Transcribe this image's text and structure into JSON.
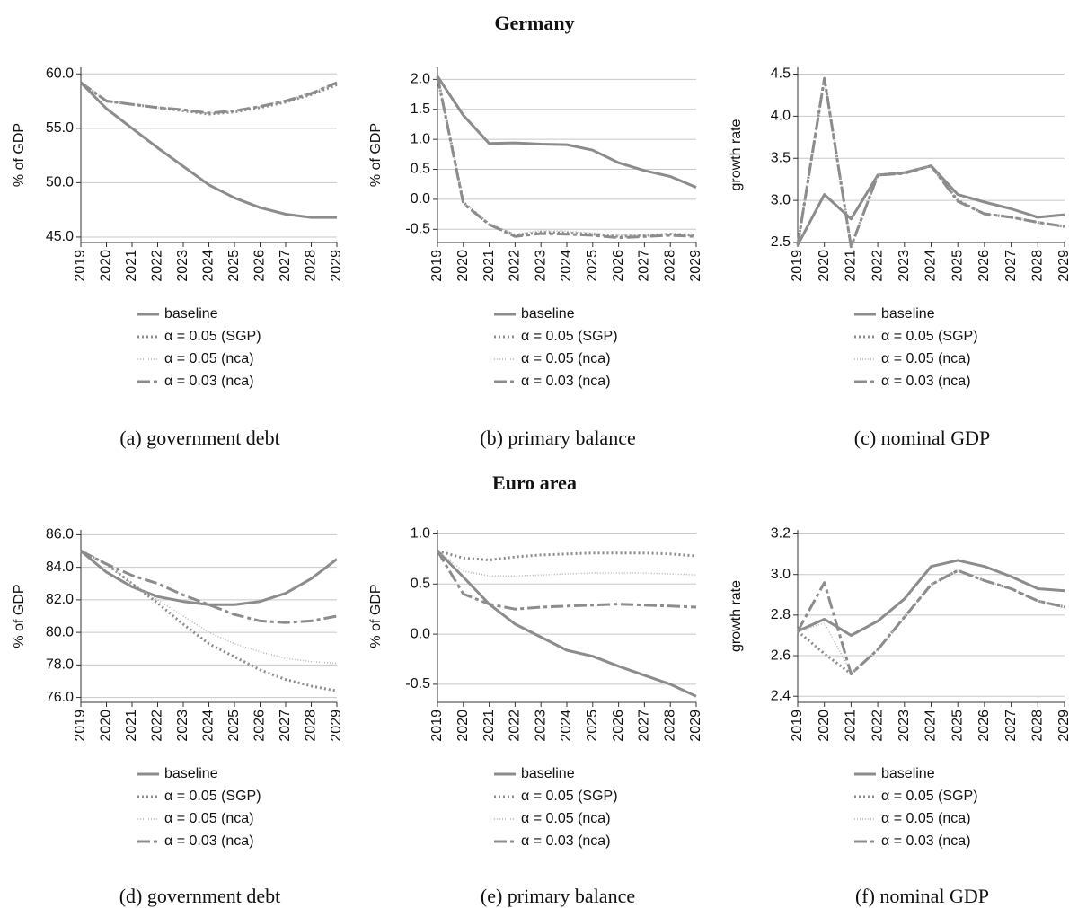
{
  "headings": [
    "Germany",
    "Euro area"
  ],
  "chart_data": [
    {
      "type": "line",
      "caption": "(a) government debt",
      "ylabel": "% of GDP",
      "categories": [
        "2019",
        "2020",
        "2021",
        "2022",
        "2023",
        "2024",
        "2025",
        "2026",
        "2027",
        "2028",
        "2029"
      ],
      "ylim": [
        44.5,
        60.6
      ],
      "yticks": [
        {
          "value": 45,
          "label": "45.0"
        },
        {
          "value": 50,
          "label": "50.0"
        },
        {
          "value": 55,
          "label": "55.0"
        },
        {
          "value": 60,
          "label": "60.0"
        }
      ],
      "grid": true,
      "series": [
        {
          "name": "baseline",
          "color": "#8c8c8c",
          "style": "solid",
          "values": [
            59.2,
            56.8,
            55.0,
            53.2,
            51.5,
            49.8,
            48.6,
            47.7,
            47.1,
            46.8,
            46.8
          ]
        },
        {
          "name": "α = 0.05 (SGP)",
          "color": "#8c8c8c",
          "style": "dotted",
          "values": [
            59.2,
            57.5,
            57.2,
            56.9,
            56.6,
            56.3,
            56.5,
            56.9,
            57.4,
            58.1,
            59.0
          ]
        },
        {
          "name": "α = 0.05 (nca)",
          "color": "#b4b4b4",
          "style": "fine",
          "values": [
            59.2,
            57.5,
            57.2,
            56.9,
            56.6,
            56.4,
            56.6,
            57.0,
            57.6,
            58.3,
            59.2
          ]
        },
        {
          "name": "α = 0.03 (nca)",
          "color": "#8c8c8c",
          "style": "dashed",
          "values": [
            59.2,
            57.5,
            57.2,
            56.9,
            56.7,
            56.4,
            56.6,
            57.0,
            57.5,
            58.2,
            59.2
          ]
        }
      ]
    },
    {
      "type": "line",
      "caption": "(b) primary balance",
      "ylabel": "% of GDP",
      "categories": [
        "2019",
        "2020",
        "2021",
        "2022",
        "2023",
        "2024",
        "2025",
        "2026",
        "2027",
        "2028",
        "2029"
      ],
      "ylim": [
        -0.72,
        2.2
      ],
      "yticks": [
        -0.5,
        {
          "value": 0,
          "label": "0.0"
        },
        0.5,
        {
          "value": 1,
          "label": "1.0"
        },
        1.5,
        {
          "value": 2,
          "label": "2.0"
        }
      ],
      "grid": true,
      "series": [
        {
          "name": "baseline",
          "color": "#8c8c8c",
          "style": "solid",
          "values": [
            2.05,
            1.4,
            0.93,
            0.94,
            0.92,
            0.91,
            0.82,
            0.61,
            0.48,
            0.38,
            0.2
          ]
        },
        {
          "name": "α = 0.05 (SGP)",
          "color": "#8c8c8c",
          "style": "dotted",
          "values": [
            2.05,
            -0.05,
            -0.42,
            -0.6,
            -0.55,
            -0.56,
            -0.58,
            -0.62,
            -0.6,
            -0.58,
            -0.6
          ]
        },
        {
          "name": "α = 0.05 (nca)",
          "color": "#b4b4b4",
          "style": "fine",
          "values": [
            2.05,
            -0.05,
            -0.4,
            -0.58,
            -0.52,
            -0.53,
            -0.56,
            -0.6,
            -0.59,
            -0.57,
            -0.58
          ]
        },
        {
          "name": "α = 0.03 (nca)",
          "color": "#8c8c8c",
          "style": "dashed",
          "values": [
            2.05,
            -0.07,
            -0.42,
            -0.62,
            -0.57,
            -0.58,
            -0.6,
            -0.64,
            -0.62,
            -0.6,
            -0.62
          ]
        }
      ]
    },
    {
      "type": "line",
      "caption": "(c) nominal GDP",
      "ylabel": "growth rate",
      "categories": [
        "2019",
        "2020",
        "2021",
        "2022",
        "2023",
        "2024",
        "2025",
        "2026",
        "2027",
        "2028",
        "2029"
      ],
      "ylim": [
        2.5,
        4.58
      ],
      "yticks": [
        2.5,
        {
          "value": 3,
          "label": "3.0"
        },
        3.5,
        {
          "value": 4,
          "label": "4.0"
        },
        4.5
      ],
      "grid": true,
      "series": [
        {
          "name": "baseline",
          "color": "#8c8c8c",
          "style": "solid",
          "values": [
            2.47,
            3.07,
            2.78,
            3.3,
            3.33,
            3.41,
            3.07,
            2.98,
            2.9,
            2.8,
            2.83
          ]
        },
        {
          "name": "α = 0.05 (SGP)",
          "color": "#8c8c8c",
          "style": "dotted",
          "values": [
            2.47,
            4.45,
            2.45,
            3.3,
            3.33,
            3.41,
            3.0,
            2.84,
            2.8,
            2.74,
            2.69
          ]
        },
        {
          "name": "α = 0.05 (nca)",
          "color": "#b4b4b4",
          "style": "fine",
          "values": [
            2.47,
            4.45,
            2.45,
            3.3,
            3.33,
            3.41,
            3.0,
            2.84,
            2.8,
            2.74,
            2.69
          ]
        },
        {
          "name": "α = 0.03 (nca)",
          "color": "#8c8c8c",
          "style": "dashed",
          "values": [
            2.47,
            4.45,
            2.45,
            3.3,
            3.32,
            3.41,
            2.99,
            2.84,
            2.8,
            2.74,
            2.69
          ]
        }
      ]
    },
    {
      "type": "line",
      "caption": "(d) government debt",
      "ylabel": "% of GDP",
      "categories": [
        "2019",
        "2020",
        "2021",
        "2022",
        "2023",
        "2024",
        "2025",
        "2026",
        "2027",
        "2028",
        "2029"
      ],
      "ylim": [
        75.7,
        86.3
      ],
      "yticks": [
        {
          "value": 76,
          "label": "76.0"
        },
        {
          "value": 78,
          "label": "78.0"
        },
        {
          "value": 80,
          "label": "80.0"
        },
        {
          "value": 82,
          "label": "82.0"
        },
        {
          "value": 84,
          "label": "84.0"
        },
        {
          "value": 86,
          "label": "86.0"
        }
      ],
      "grid": true,
      "series": [
        {
          "name": "baseline",
          "color": "#8c8c8c",
          "style": "solid",
          "values": [
            85,
            83.7,
            82.8,
            82.2,
            81.9,
            81.7,
            81.7,
            81.9,
            82.4,
            83.3,
            84.5
          ]
        },
        {
          "name": "α = 0.05 (SGP)",
          "color": "#8c8c8c",
          "style": "dotted",
          "values": [
            85,
            84.2,
            83.0,
            81.8,
            80.5,
            79.3,
            78.5,
            77.7,
            77.1,
            76.7,
            76.4
          ]
        },
        {
          "name": "α = 0.05 (nca)",
          "color": "#b4b4b4",
          "style": "fine",
          "values": [
            85,
            84.2,
            83.0,
            82.0,
            81.0,
            80.0,
            79.3,
            78.8,
            78.4,
            78.2,
            78.1
          ]
        },
        {
          "name": "α = 0.03 (nca)",
          "color": "#8c8c8c",
          "style": "dashed",
          "values": [
            85,
            84.2,
            83.5,
            83.0,
            82.3,
            81.7,
            81.1,
            80.7,
            80.6,
            80.7,
            81.0
          ]
        }
      ]
    },
    {
      "type": "line",
      "caption": "(e) primary balance",
      "ylabel": "% of GDP",
      "categories": [
        "2019",
        "2020",
        "2021",
        "2022",
        "2023",
        "2024",
        "2025",
        "2026",
        "2027",
        "2028",
        "2029"
      ],
      "ylim": [
        -0.68,
        1.04
      ],
      "yticks": [
        -0.5,
        {
          "value": 0,
          "label": "0.0"
        },
        0.5,
        {
          "value": 1,
          "label": "1.0"
        }
      ],
      "grid": true,
      "series": [
        {
          "name": "baseline",
          "color": "#8c8c8c",
          "style": "solid",
          "values": [
            0.83,
            0.57,
            0.3,
            0.1,
            -0.03,
            -0.16,
            -0.22,
            -0.32,
            -0.41,
            -0.5,
            -0.62
          ]
        },
        {
          "name": "α = 0.05 (SGP)",
          "color": "#8c8c8c",
          "style": "dotted",
          "values": [
            0.83,
            0.76,
            0.74,
            0.77,
            0.79,
            0.8,
            0.81,
            0.81,
            0.81,
            0.8,
            0.78
          ]
        },
        {
          "name": "α = 0.05 (nca)",
          "color": "#b4b4b4",
          "style": "fine",
          "values": [
            0.83,
            0.63,
            0.58,
            0.58,
            0.59,
            0.6,
            0.61,
            0.61,
            0.61,
            0.6,
            0.59
          ]
        },
        {
          "name": "α = 0.03 (nca)",
          "color": "#8c8c8c",
          "style": "dashed",
          "values": [
            0.83,
            0.4,
            0.3,
            0.25,
            0.27,
            0.28,
            0.29,
            0.3,
            0.29,
            0.28,
            0.27
          ]
        }
      ]
    },
    {
      "type": "line",
      "caption": "(f) nominal GDP",
      "ylabel": "growth rate",
      "categories": [
        "2019",
        "2020",
        "2021",
        "2022",
        "2023",
        "2024",
        "2025",
        "2026",
        "2027",
        "2028",
        "2029"
      ],
      "ylim": [
        2.37,
        3.22
      ],
      "yticks": [
        2.4,
        2.6,
        2.8,
        {
          "value": 3,
          "label": "3.0"
        },
        3.2
      ],
      "grid": true,
      "series": [
        {
          "name": "baseline",
          "color": "#8c8c8c",
          "style": "solid",
          "values": [
            2.72,
            2.78,
            2.7,
            2.77,
            2.88,
            3.04,
            3.07,
            3.04,
            2.99,
            2.93,
            2.92
          ]
        },
        {
          "name": "α = 0.05 (SGP)",
          "color": "#8c8c8c",
          "style": "dotted",
          "values": [
            2.72,
            2.61,
            2.51,
            2.63,
            2.79,
            2.95,
            3.02,
            2.97,
            2.93,
            2.87,
            2.84
          ]
        },
        {
          "name": "α = 0.05 (nca)",
          "color": "#b4b4b4",
          "style": "fine",
          "values": [
            2.72,
            2.76,
            2.52,
            2.63,
            2.79,
            2.95,
            3.02,
            2.97,
            2.93,
            2.87,
            2.84
          ]
        },
        {
          "name": "α = 0.03 (nca)",
          "color": "#8c8c8c",
          "style": "dashed",
          "values": [
            2.72,
            2.96,
            2.51,
            2.63,
            2.79,
            2.95,
            3.02,
            2.97,
            2.93,
            2.87,
            2.84
          ]
        }
      ]
    }
  ]
}
